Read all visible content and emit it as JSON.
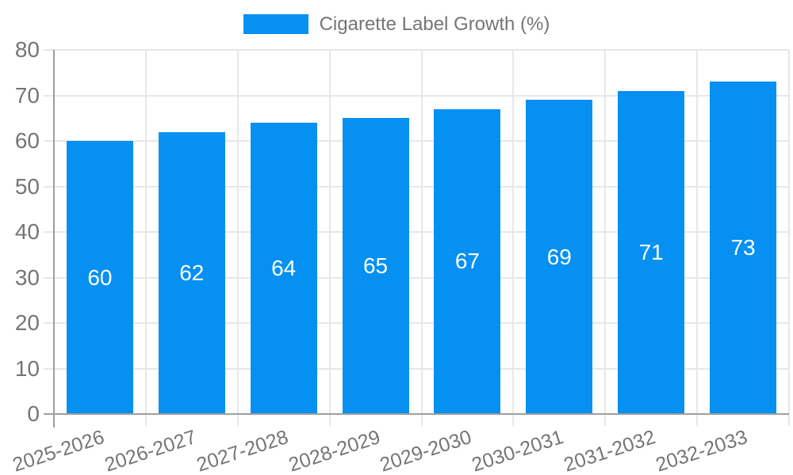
{
  "chart_data": {
    "type": "bar",
    "title": "Cigarette Label Growth (%)",
    "categories": [
      "2025-2026",
      "2026-2027",
      "2027-2028",
      "2028-2029",
      "2029-2030",
      "2030-2031",
      "2031-2032",
      "2032-2033"
    ],
    "values": [
      60,
      62,
      64,
      65,
      67,
      69,
      71,
      73
    ],
    "value_labels": [
      "60",
      "62",
      "64",
      "65",
      "67",
      "69",
      "71",
      "73"
    ],
    "xlabel": "",
    "ylabel": "",
    "ylim": [
      0,
      80
    ],
    "yticks": [
      0,
      10,
      20,
      30,
      40,
      50,
      60,
      70,
      80
    ],
    "grid": true,
    "legend_position": "top",
    "colors": {
      "bar": "#0590f2",
      "value_label": "#ffffff",
      "axis_line": "#9e9e9e",
      "gridline": "#e7e7e7",
      "tick_label": "#757575",
      "title": "#757575",
      "background": "#ffffff"
    }
  }
}
